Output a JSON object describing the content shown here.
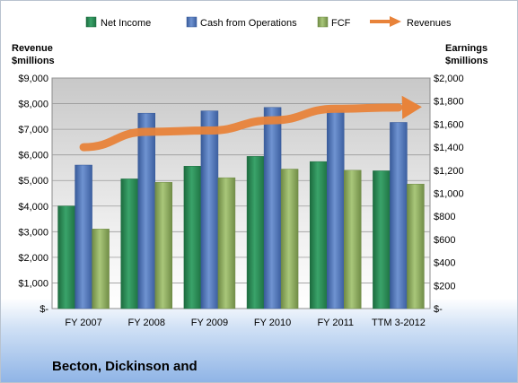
{
  "company_label": "Becton, Dickinson and",
  "chart_data": {
    "type": "bar",
    "categories": [
      "FY 2007",
      "FY 2008",
      "FY 2009",
      "FY 2010",
      "FY 2011",
      "TTM 3-2012"
    ],
    "left_axis": {
      "label_line1": "Revenue",
      "label_line2": "$millions",
      "ylim": [
        0,
        9000
      ],
      "ticks": [
        0,
        1000,
        2000,
        3000,
        4000,
        5000,
        6000,
        7000,
        8000,
        9000
      ],
      "tick_labels": [
        "$-",
        "$1,000",
        "$2,000",
        "$3,000",
        "$4,000",
        "$5,000",
        "$6,000",
        "$7,000",
        "$8,000",
        "$9,000"
      ]
    },
    "right_axis": {
      "label_line1": "Earnings",
      "label_line2": "$millions",
      "ylim": [
        0,
        2000
      ],
      "ticks": [
        0,
        200,
        400,
        600,
        800,
        1000,
        1200,
        1400,
        1600,
        1800,
        2000
      ],
      "tick_labels": [
        "$-",
        "$200",
        "$400",
        "$600",
        "$800",
        "$1,000",
        "$1,200",
        "$1,400",
        "$1,600",
        "$1,800",
        "$2,000"
      ]
    },
    "series": [
      {
        "name": "Net Income",
        "type": "bar",
        "axis": "right",
        "color": "#2e8b57",
        "values": [
          890,
          1125,
          1235,
          1320,
          1275,
          1195
        ]
      },
      {
        "name": "Cash from Operations",
        "type": "bar",
        "axis": "right",
        "color": "#4f74b8",
        "values": [
          1245,
          1695,
          1715,
          1745,
          1720,
          1615
        ]
      },
      {
        "name": "FCF",
        "type": "bar",
        "axis": "right",
        "color": "#8aa85a",
        "values": [
          690,
          1095,
          1135,
          1210,
          1200,
          1080
        ]
      },
      {
        "name": "Revenues",
        "type": "line",
        "axis": "left",
        "color": "#e8833a",
        "values": [
          6300,
          6900,
          6950,
          7350,
          7800,
          7850
        ]
      }
    ],
    "legend_position": "top",
    "grid": true
  }
}
